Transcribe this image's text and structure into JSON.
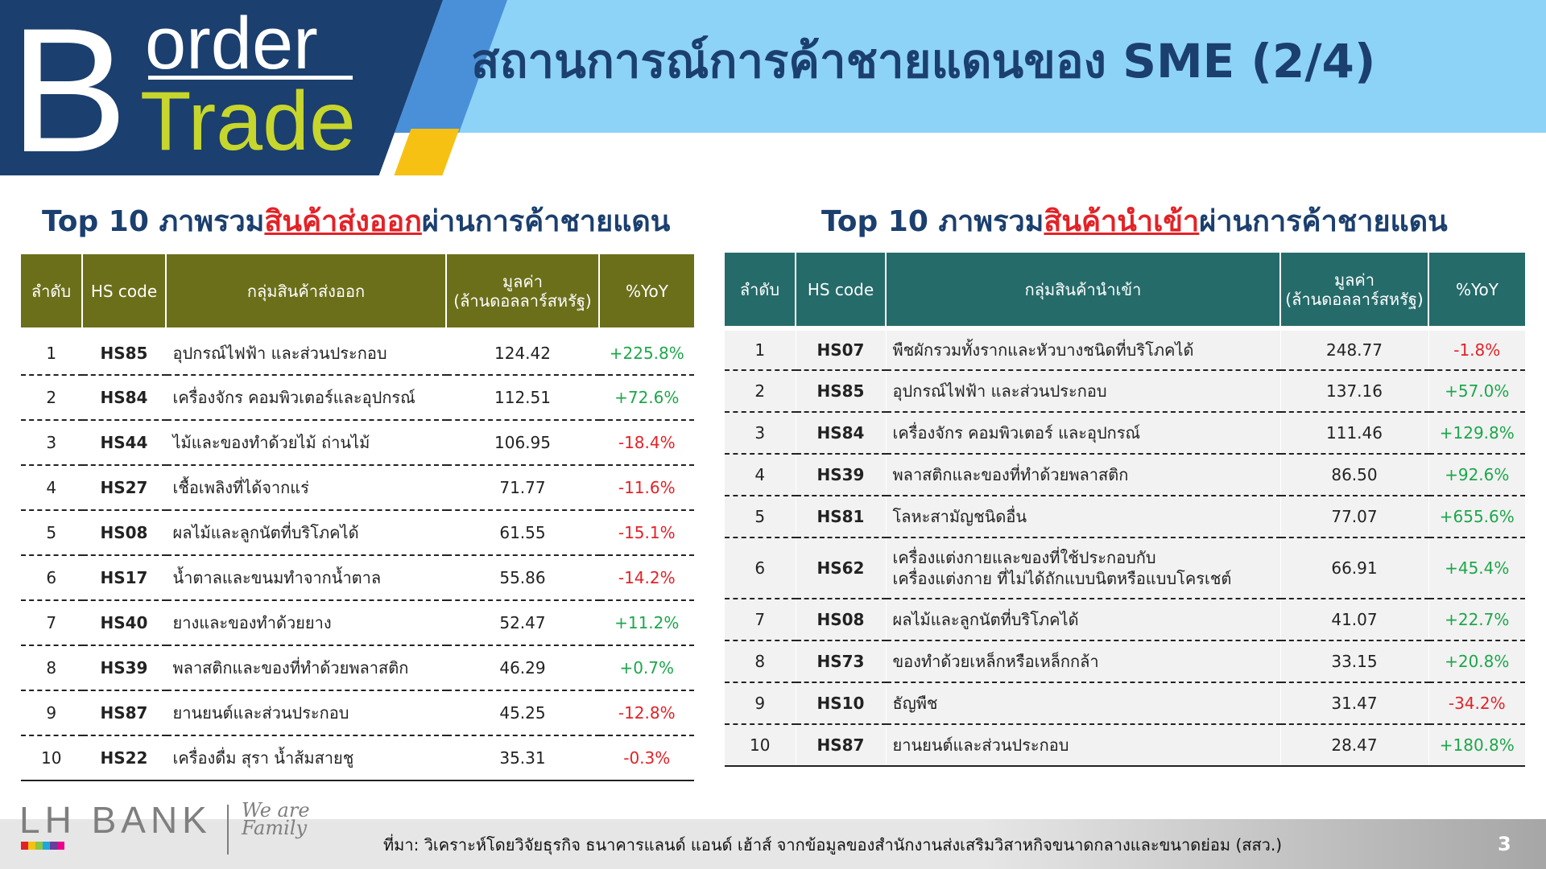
{
  "logo": {
    "big_letter": "B",
    "word1": "order",
    "word2": "Trade"
  },
  "page_title": "สถานการณ์การค้าชายแดนของ SME (2/4)",
  "export_section": {
    "title_prefix": "Top 10 ภาพรวม",
    "title_highlight": "สินค้าส่งออก",
    "title_suffix": "ผ่านการค้าชายแดน",
    "headers": {
      "rank": "ลำดับ",
      "hs": "HS code",
      "group": "กลุ่มสินค้าส่งออก",
      "value_line1": "มูลค่า",
      "value_line2": "(ล้านดอลลาร์สหรัฐ)",
      "yoy": "%YoY"
    },
    "rows": [
      {
        "rank": "1",
        "hs": "HS85",
        "name": "อุปกรณ์ไฟฟ้า และส่วนประกอบ",
        "value": "124.42",
        "yoy": "+225.8%"
      },
      {
        "rank": "2",
        "hs": "HS84",
        "name": "เครื่องจักร คอมพิวเตอร์และอุปกรณ์",
        "value": "112.51",
        "yoy": "+72.6%"
      },
      {
        "rank": "3",
        "hs": "HS44",
        "name": "ไม้และของทำด้วยไม้ ถ่านไม้",
        "value": "106.95",
        "yoy": "-18.4%"
      },
      {
        "rank": "4",
        "hs": "HS27",
        "name": "เชื้อเพลิงที่ได้จากแร่",
        "value": "71.77",
        "yoy": "-11.6%"
      },
      {
        "rank": "5",
        "hs": "HS08",
        "name": "ผลไม้และลูกนัตที่บริโภคได้",
        "value": "61.55",
        "yoy": "-15.1%"
      },
      {
        "rank": "6",
        "hs": "HS17",
        "name": "น้ำตาลและขนมทำจากน้ำตาล",
        "value": "55.86",
        "yoy": "-14.2%"
      },
      {
        "rank": "7",
        "hs": "HS40",
        "name": "ยางและของทำด้วยยาง",
        "value": "52.47",
        "yoy": "+11.2%"
      },
      {
        "rank": "8",
        "hs": "HS39",
        "name": "พลาสติกและของที่ทำด้วยพลาสติก",
        "value": "46.29",
        "yoy": "+0.7%"
      },
      {
        "rank": "9",
        "hs": "HS87",
        "name": "ยานยนต์และส่วนประกอบ",
        "value": "45.25",
        "yoy": "-12.8%"
      },
      {
        "rank": "10",
        "hs": "HS22",
        "name": "เครื่องดื่ม สุรา น้ำส้มสายชู",
        "value": "35.31",
        "yoy": "-0.3%"
      }
    ]
  },
  "import_section": {
    "title_prefix": "Top 10 ภาพรวม",
    "title_highlight": "สินค้านำเข้า",
    "title_suffix": "ผ่านการค้าชายแดน",
    "headers": {
      "rank": "ลำดับ",
      "hs": "HS code",
      "group": "กลุ่มสินค้านำเข้า",
      "value_line1": "มูลค่า",
      "value_line2": "(ล้านดอลลาร์สหรัฐ)",
      "yoy": "%YoY"
    },
    "rows": [
      {
        "rank": "1",
        "hs": "HS07",
        "name": "พืชผักรวมทั้งรากและหัวบางชนิดที่บริโภคได้",
        "name2": "",
        "value": "248.77",
        "yoy": "-1.8%"
      },
      {
        "rank": "2",
        "hs": "HS85",
        "name": "อุปกรณ์ไฟฟ้า และส่วนประกอบ",
        "name2": "",
        "value": "137.16",
        "yoy": "+57.0%"
      },
      {
        "rank": "3",
        "hs": "HS84",
        "name": "เครื่องจักร คอมพิวเตอร์ และอุปกรณ์",
        "name2": "",
        "value": "111.46",
        "yoy": "+129.8%"
      },
      {
        "rank": "4",
        "hs": "HS39",
        "name": "พลาสติกและของที่ทำด้วยพลาสติก",
        "name2": "",
        "value": "86.50",
        "yoy": "+92.6%"
      },
      {
        "rank": "5",
        "hs": "HS81",
        "name": "โลหะสามัญชนิดอื่น",
        "name2": "",
        "value": "77.07",
        "yoy": "+655.6%"
      },
      {
        "rank": "6",
        "hs": "HS62",
        "name": "เครื่องแต่งกายและของที่ใช้ประกอบกับ",
        "name2": "เครื่องแต่งกาย ที่ไม่ได้ถักแบบนิตหรือแบบโครเชต์",
        "value": "66.91",
        "yoy": "+45.4%"
      },
      {
        "rank": "7",
        "hs": "HS08",
        "name": "ผลไม้และลูกนัตที่บริโภคได้",
        "name2": "",
        "value": "41.07",
        "yoy": "+22.7%"
      },
      {
        "rank": "8",
        "hs": "HS73",
        "name": "ของทำด้วยเหล็กหรือเหล็กกล้า",
        "name2": "",
        "value": "33.15",
        "yoy": "+20.8%"
      },
      {
        "rank": "9",
        "hs": "HS10",
        "name": "ธัญพืช",
        "name2": "",
        "value": "31.47",
        "yoy": "-34.2%"
      },
      {
        "rank": "10",
        "hs": "HS87",
        "name": "ยานยนต์และส่วนประกอบ",
        "name2": "",
        "value": "28.47",
        "yoy": "+180.8%"
      }
    ]
  },
  "footer": {
    "brand": "LH BANK",
    "tagline": "We are Family",
    "source": "ที่มา: วิเคราะห์โดยวิจัยธุรกิจ ธนาคารแลนด์ แอนด์ เฮ้าส์ จากข้อมูลของสำนักงานส่งเสริมวิสาหกิจขนาดกลางและขนาดย่อม (สสว.)",
    "page_number": "3",
    "stripe_colors": [
      "#e32227",
      "#f6c113",
      "#8dc63f",
      "#1ea6e0",
      "#6a3d9a",
      "#ec008c"
    ]
  },
  "colors": {
    "dark_blue": "#1b3f6e",
    "light_blue": "#8dd3f7",
    "lime": "#c7d62c",
    "export_header": "#6b6f1a",
    "import_header": "#256b6a",
    "positive": "#1ea64b",
    "negative": "#e32227"
  }
}
